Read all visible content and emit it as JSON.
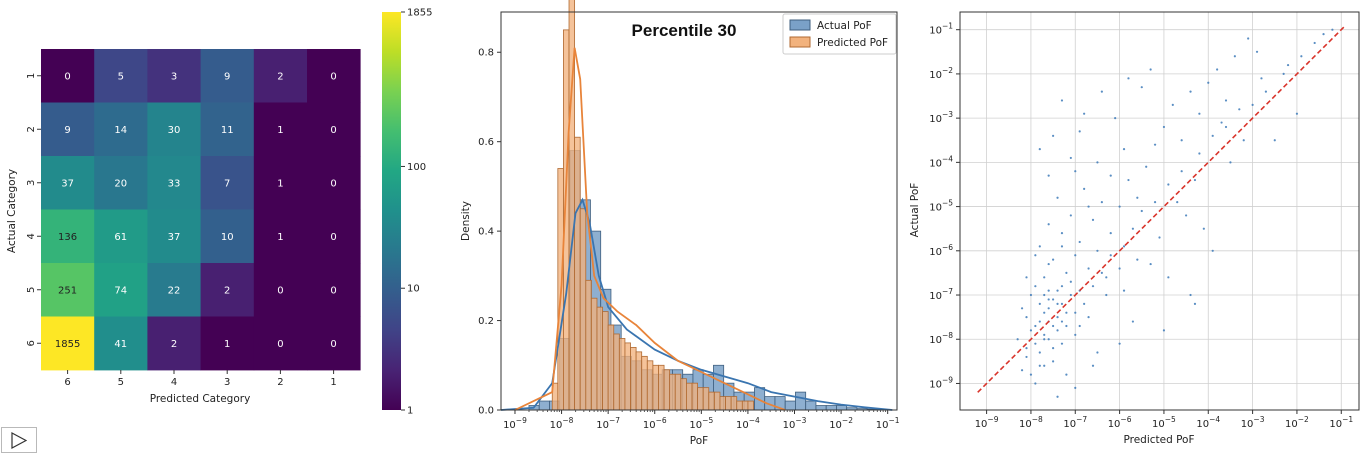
{
  "chart_data": [
    {
      "type": "heatmap",
      "title": "",
      "xlabel": "Predicted Category",
      "ylabel": "Actual Category",
      "x_categories": [
        "6",
        "5",
        "4",
        "3",
        "2",
        "1"
      ],
      "y_categories": [
        "1",
        "2",
        "3",
        "4",
        "5",
        "6"
      ],
      "values": [
        [
          0,
          5,
          3,
          9,
          2,
          0
        ],
        [
          9,
          14,
          30,
          11,
          1,
          0
        ],
        [
          37,
          20,
          33,
          7,
          1,
          0
        ],
        [
          136,
          61,
          37,
          10,
          1,
          0
        ],
        [
          251,
          74,
          22,
          2,
          0,
          0
        ],
        [
          1855,
          41,
          2,
          1,
          0,
          0
        ]
      ],
      "colorbar": {
        "scale": "log",
        "min": 1,
        "max": 1855,
        "ticks": [
          1,
          10,
          100,
          1855
        ],
        "tick_labels": [
          "1",
          "10",
          "100",
          "1855"
        ]
      }
    },
    {
      "type": "histogram",
      "title": "Percentile 30",
      "xlabel": "PoF",
      "ylabel": "Density",
      "xscale": "log",
      "xlim_exp": [
        -9.3,
        -0.8
      ],
      "ylim": [
        0,
        0.89
      ],
      "x_ticks_exp": [
        -9,
        -8,
        -7,
        -6,
        -5,
        -4,
        -3,
        -2,
        -1
      ],
      "y_ticks": [
        0.0,
        0.2,
        0.4,
        0.6,
        0.8
      ],
      "y_tick_labels": [
        "0.0",
        "0.2",
        "0.4",
        "0.6",
        "0.8"
      ],
      "legend": [
        "Actual PoF",
        "Predicted PoF"
      ],
      "legend_position": "top-right",
      "series": [
        {
          "name": "Actual PoF",
          "color": "#7aa1c8",
          "edge": "#3f5f7f",
          "bin_start_exp": -8.7,
          "bin_width_exp": 0.22,
          "values": [
            0.01,
            0.02,
            0.02,
            0.16,
            0.58,
            0.47,
            0.4,
            0.27,
            0.19,
            0.12,
            0.11,
            0.09,
            0.08,
            0.09,
            0.09,
            0.08,
            0.09,
            0.08,
            0.1,
            0.06,
            0.04,
            0.04,
            0.05,
            0.03,
            0.03,
            0.02,
            0.04,
            0.02,
            0.01,
            0.01,
            0.01,
            0.005,
            0.003,
            0.002
          ],
          "kde": [
            [
              -9.3,
              0.0
            ],
            [
              -8.6,
              0.005
            ],
            [
              -8.2,
              0.06
            ],
            [
              -7.9,
              0.26
            ],
            [
              -7.7,
              0.44
            ],
            [
              -7.55,
              0.47
            ],
            [
              -7.4,
              0.42
            ],
            [
              -7.2,
              0.3
            ],
            [
              -7.0,
              0.23
            ],
            [
              -6.6,
              0.18
            ],
            [
              -6.0,
              0.135
            ],
            [
              -5.5,
              0.11
            ],
            [
              -5.0,
              0.09
            ],
            [
              -4.5,
              0.075
            ],
            [
              -4.0,
              0.06
            ],
            [
              -3.5,
              0.04
            ],
            [
              -3.0,
              0.03
            ],
            [
              -2.5,
              0.02
            ],
            [
              -2.0,
              0.012
            ],
            [
              -1.5,
              0.006
            ],
            [
              -0.9,
              0.0
            ]
          ]
        },
        {
          "name": "Predicted PoF",
          "color": "#f2b27d",
          "edge": "#b06a32",
          "bin_start_exp": -8.2,
          "bin_width_exp": 0.12,
          "values": [
            0.06,
            0.54,
            0.85,
            0.94,
            0.61,
            0.45,
            0.29,
            0.25,
            0.23,
            0.22,
            0.19,
            0.17,
            0.16,
            0.15,
            0.14,
            0.13,
            0.12,
            0.11,
            0.1,
            0.1,
            0.09,
            0.08,
            0.08,
            0.07,
            0.06,
            0.06,
            0.05,
            0.05,
            0.04,
            0.04,
            0.03,
            0.03,
            0.03,
            0.02,
            0.02,
            0.02
          ],
          "kde": [
            [
              -9.0,
              0.0
            ],
            [
              -8.2,
              0.04
            ],
            [
              -8.0,
              0.28
            ],
            [
              -7.85,
              0.62
            ],
            [
              -7.72,
              0.81
            ],
            [
              -7.6,
              0.74
            ],
            [
              -7.45,
              0.44
            ],
            [
              -7.3,
              0.3
            ],
            [
              -7.1,
              0.25
            ],
            [
              -6.8,
              0.22
            ],
            [
              -6.4,
              0.19
            ],
            [
              -6.0,
              0.15
            ],
            [
              -5.5,
              0.11
            ],
            [
              -5.0,
              0.085
            ],
            [
              -4.5,
              0.06
            ],
            [
              -4.0,
              0.035
            ],
            [
              -3.6,
              0.015
            ],
            [
              -3.2,
              0.0
            ]
          ]
        }
      ]
    },
    {
      "type": "scatter",
      "title": "",
      "xlabel": "Predicted PoF",
      "ylabel": "Actual PoF",
      "xscale": "log",
      "yscale": "log",
      "xlim_exp": [
        -9.6,
        -0.6
      ],
      "ylim_exp": [
        -9.6,
        -0.6
      ],
      "x_ticks_exp": [
        -9,
        -8,
        -7,
        -6,
        -5,
        -4,
        -3,
        -2,
        -1
      ],
      "y_ticks_exp": [
        -9,
        -8,
        -7,
        -6,
        -5,
        -4,
        -3,
        -2,
        -1
      ],
      "grid": true,
      "point_color": "#3d7ab8",
      "reference_line": {
        "color": "#d9342b",
        "style": "dashed",
        "from_exp": [
          -9.2,
          -9.2
        ],
        "to_exp": [
          -0.9,
          -0.9
        ]
      },
      "points_exp": [
        [
          -7.8,
          -7.6
        ],
        [
          -7.6,
          -7.3
        ],
        [
          -7.5,
          -7.7
        ],
        [
          -7.7,
          -7.9
        ],
        [
          -7.9,
          -8.1
        ],
        [
          -8.0,
          -7.8
        ],
        [
          -7.4,
          -7.5
        ],
        [
          -7.6,
          -8.0
        ],
        [
          -7.3,
          -7.2
        ],
        [
          -7.7,
          -7.4
        ],
        [
          -7.8,
          -8.3
        ],
        [
          -8.1,
          -8.4
        ],
        [
          -7.5,
          -7.1
        ],
        [
          -7.2,
          -7.4
        ],
        [
          -7.9,
          -7.7
        ],
        [
          -7.6,
          -7.6
        ],
        [
          -7.4,
          -6.9
        ],
        [
          -7.7,
          -6.6
        ],
        [
          -7.5,
          -6.2
        ],
        [
          -7.8,
          -5.9
        ],
        [
          -7.3,
          -5.6
        ],
        [
          -7.6,
          -5.4
        ],
        [
          -7.2,
          -6.5
        ],
        [
          -7.0,
          -6.1
        ],
        [
          -6.9,
          -5.8
        ],
        [
          -7.1,
          -5.2
        ],
        [
          -7.4,
          -4.8
        ],
        [
          -7.6,
          -4.3
        ],
        [
          -7.8,
          -3.7
        ],
        [
          -7.5,
          -3.4
        ],
        [
          -7.1,
          -3.9
        ],
        [
          -6.8,
          -4.6
        ],
        [
          -6.6,
          -5.3
        ],
        [
          -6.4,
          -4.9
        ],
        [
          -6.2,
          -5.6
        ],
        [
          -6.0,
          -5.0
        ],
        [
          -5.8,
          -4.4
        ],
        [
          -5.6,
          -4.8
        ],
        [
          -5.4,
          -4.1
        ],
        [
          -5.2,
          -3.6
        ],
        [
          -5.0,
          -3.2
        ],
        [
          -4.8,
          -2.7
        ],
        [
          -4.6,
          -3.5
        ],
        [
          -4.4,
          -2.4
        ],
        [
          -4.2,
          -2.9
        ],
        [
          -4.0,
          -2.2
        ],
        [
          -3.8,
          -1.9
        ],
        [
          -3.6,
          -2.6
        ],
        [
          -3.4,
          -1.6
        ],
        [
          -3.1,
          -1.2
        ],
        [
          -2.9,
          -1.5
        ],
        [
          -3.2,
          -3.5
        ],
        [
          -3.5,
          -4.0
        ],
        [
          -4.5,
          -5.2
        ],
        [
          -5.3,
          -6.3
        ],
        [
          -5.9,
          -6.9
        ],
        [
          -6.3,
          -7.0
        ],
        [
          -6.7,
          -7.5
        ],
        [
          -4.1,
          -5.5
        ],
        [
          -3.9,
          -6.0
        ],
        [
          -4.3,
          -7.2
        ],
        [
          -5.7,
          -7.6
        ],
        [
          -6.5,
          -8.3
        ],
        [
          -7.0,
          -9.1
        ],
        [
          -7.4,
          -9.3
        ],
        [
          -7.9,
          -9.0
        ],
        [
          -8.2,
          -8.7
        ],
        [
          -8.3,
          -8.0
        ],
        [
          -8.1,
          -7.5
        ],
        [
          -6.1,
          -3.0
        ],
        [
          -5.5,
          -2.3
        ],
        [
          -6.8,
          -2.9
        ],
        [
          -7.3,
          -2.6
        ],
        [
          -7.0,
          -7.9
        ],
        [
          -6.9,
          -7.7
        ],
        [
          -7.1,
          -7.0
        ],
        [
          -6.7,
          -6.4
        ],
        [
          -6.5,
          -6.0
        ],
        [
          -6.3,
          -6.6
        ],
        [
          -5.9,
          -5.9
        ],
        [
          -5.6,
          -6.2
        ],
        [
          -5.1,
          -5.7
        ],
        [
          -4.7,
          -4.9
        ],
        [
          -4.3,
          -4.4
        ],
        [
          -3.7,
          -3.1
        ],
        [
          -3.3,
          -2.8
        ],
        [
          -2.5,
          -3.5
        ],
        [
          -2.0,
          -2.9
        ],
        [
          -1.6,
          -1.3
        ],
        [
          -2.2,
          -1.8
        ],
        [
          -2.8,
          -2.1
        ],
        [
          -5.3,
          -1.9
        ],
        [
          -5.8,
          -2.1
        ],
        [
          -6.4,
          -2.4
        ],
        [
          -6.9,
          -3.3
        ],
        [
          -4.9,
          -6.6
        ],
        [
          -4.4,
          -7.0
        ],
        [
          -5.0,
          -7.8
        ],
        [
          -6.0,
          -8.1
        ],
        [
          -6.6,
          -8.6
        ],
        [
          -7.2,
          -8.8
        ],
        [
          -7.5,
          -8.5
        ],
        [
          -7.7,
          -8.6
        ],
        [
          -7.3,
          -8.1
        ],
        [
          -7.0,
          -7.4
        ],
        [
          -7.4,
          -7.8
        ],
        [
          -7.8,
          -7.2
        ],
        [
          -8.0,
          -7.0
        ],
        [
          -8.2,
          -7.3
        ],
        [
          -7.9,
          -6.8
        ],
        [
          -7.6,
          -6.9
        ],
        [
          -7.3,
          -6.8
        ],
        [
          -7.1,
          -6.7
        ],
        [
          -6.9,
          -6.9
        ],
        [
          -7.2,
          -7.7
        ],
        [
          -7.5,
          -8.2
        ],
        [
          -7.8,
          -8.6
        ],
        [
          -8.0,
          -8.8
        ],
        [
          -8.1,
          -8.2
        ],
        [
          -7.7,
          -8.0
        ],
        [
          -7.4,
          -7.2
        ],
        [
          -7.6,
          -7.1
        ],
        [
          -7.3,
          -7.6
        ],
        [
          -7.7,
          -7.0
        ],
        [
          -6.8,
          -7.2
        ],
        [
          -6.6,
          -6.8
        ],
        [
          -6.4,
          -6.5
        ],
        [
          -6.2,
          -6.1
        ],
        [
          -6.0,
          -6.4
        ],
        [
          -5.7,
          -5.5
        ],
        [
          -5.5,
          -5.1
        ],
        [
          -5.2,
          -4.9
        ],
        [
          -4.9,
          -4.5
        ],
        [
          -4.6,
          -4.2
        ],
        [
          -4.2,
          -3.8
        ],
        [
          -3.9,
          -3.4
        ],
        [
          -3.6,
          -3.2
        ],
        [
          -3.0,
          -2.7
        ],
        [
          -2.7,
          -2.4
        ],
        [
          -2.3,
          -2.0
        ],
        [
          -1.9,
          -1.6
        ],
        [
          -1.4,
          -1.1
        ],
        [
          -1.2,
          -1.0
        ],
        [
          -6.2,
          -4.3
        ],
        [
          -5.9,
          -3.7
        ],
        [
          -6.5,
          -4.0
        ],
        [
          -7.0,
          -4.2
        ],
        [
          -6.7,
          -5.0
        ],
        [
          -7.3,
          -5.9
        ],
        [
          -7.6,
          -6.3
        ],
        [
          -7.9,
          -6.1
        ],
        [
          -8.1,
          -6.6
        ]
      ]
    }
  ],
  "controls": {
    "play_icon": "play-triangle-icon"
  }
}
